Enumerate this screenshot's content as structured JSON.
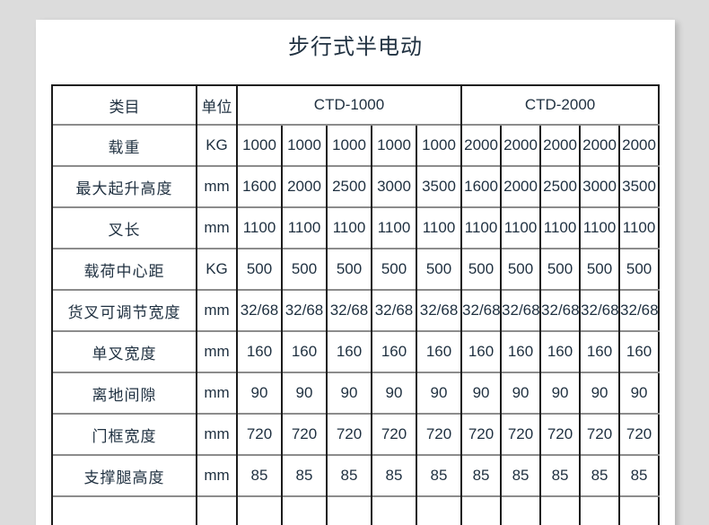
{
  "colors": {
    "canvas_bg": "#dcdcdc",
    "page_bg": "#ffffff",
    "text": "#1f3040",
    "border_dark": "#1c1c1c",
    "border_light": "#8c8c8c"
  },
  "page": {
    "title": "步行式半电动"
  },
  "table": {
    "header": {
      "category": "类目",
      "unit": "单位",
      "groups": [
        {
          "label": "CTD-1000",
          "span": 5
        },
        {
          "label": "CTD-2000",
          "span": 5
        }
      ]
    },
    "rows": [
      {
        "label": "载重",
        "unit": "KG",
        "values": [
          "1000",
          "1000",
          "1000",
          "1000",
          "1000",
          "2000",
          "2000",
          "2000",
          "2000",
          "2000"
        ]
      },
      {
        "label": "最大起升高度",
        "unit": "mm",
        "values": [
          "1600",
          "2000",
          "2500",
          "3000",
          "3500",
          "1600",
          "2000",
          "2500",
          "3000",
          "3500"
        ]
      },
      {
        "label": "叉长",
        "unit": "mm",
        "values": [
          "1100",
          "1100",
          "1100",
          "1100",
          "1100",
          "1100",
          "1100",
          "1100",
          "1100",
          "1100"
        ]
      },
      {
        "label": "载荷中心距",
        "unit": "KG",
        "values": [
          "500",
          "500",
          "500",
          "500",
          "500",
          "500",
          "500",
          "500",
          "500",
          "500"
        ]
      },
      {
        "label": "货叉可调节宽度",
        "unit": "mm",
        "values": [
          "32/68",
          "32/68",
          "32/68",
          "32/68",
          "32/68",
          "32/68",
          "32/68",
          "32/68",
          "32/68",
          "32/68"
        ]
      },
      {
        "label": "单叉宽度",
        "unit": "mm",
        "values": [
          "160",
          "160",
          "160",
          "160",
          "160",
          "160",
          "160",
          "160",
          "160",
          "160"
        ]
      },
      {
        "label": "离地间隙",
        "unit": "mm",
        "values": [
          "90",
          "90",
          "90",
          "90",
          "90",
          "90",
          "90",
          "90",
          "90",
          "90"
        ]
      },
      {
        "label": "门框宽度",
        "unit": "mm",
        "values": [
          "720",
          "720",
          "720",
          "720",
          "720",
          "720",
          "720",
          "720",
          "720",
          "720"
        ]
      },
      {
        "label": "支撑腿高度",
        "unit": "mm",
        "values": [
          "85",
          "85",
          "85",
          "85",
          "85",
          "85",
          "85",
          "85",
          "85",
          "85"
        ]
      }
    ],
    "has_partial_row_at_bottom": true
  }
}
